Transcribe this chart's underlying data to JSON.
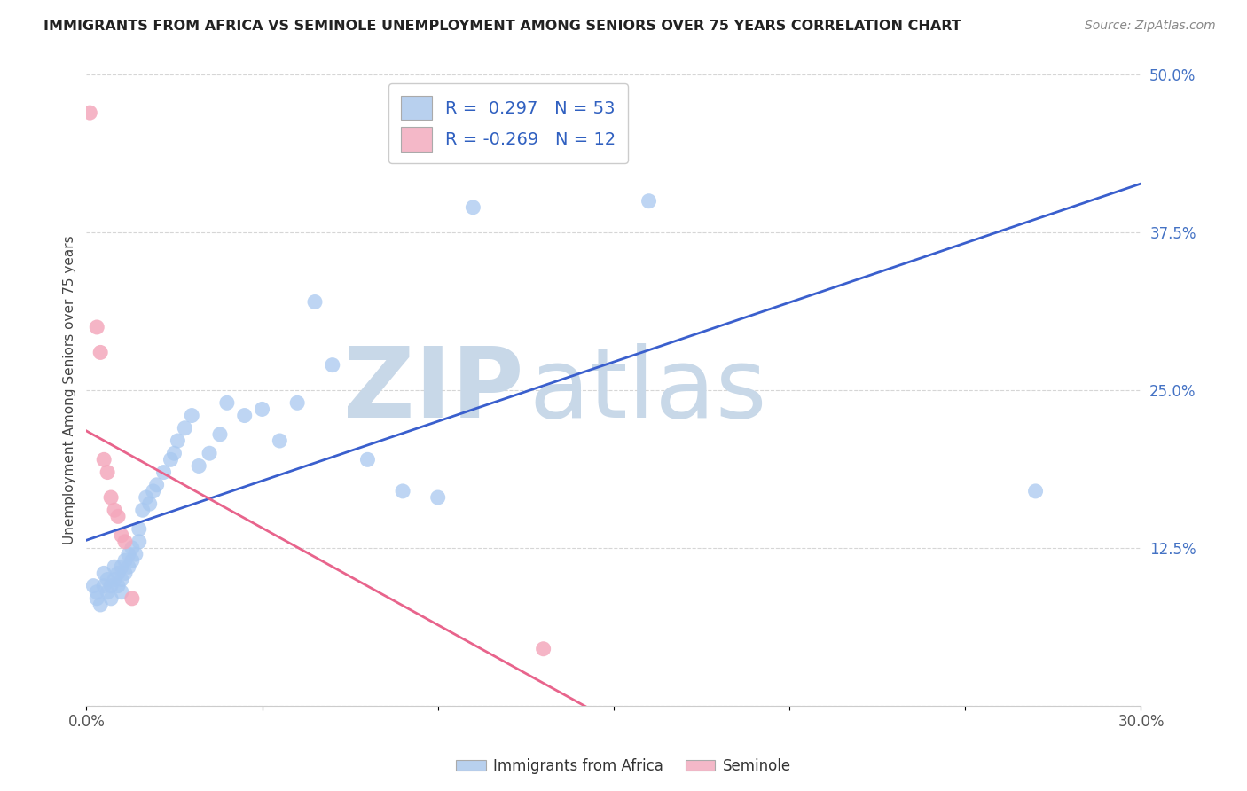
{
  "title": "IMMIGRANTS FROM AFRICA VS SEMINOLE UNEMPLOYMENT AMONG SENIORS OVER 75 YEARS CORRELATION CHART",
  "source": "Source: ZipAtlas.com",
  "ylabel": "Unemployment Among Seniors over 75 years",
  "xlim": [
    0.0,
    0.3
  ],
  "ylim": [
    0.0,
    0.5
  ],
  "yticks": [
    0.0,
    0.125,
    0.25,
    0.375,
    0.5
  ],
  "ytick_labels": [
    "",
    "12.5%",
    "25.0%",
    "37.5%",
    "50.0%"
  ],
  "xtick_left_label": "0.0%",
  "xtick_right_label": "30.0%",
  "blue_R": 0.297,
  "blue_N": 53,
  "pink_R": -0.269,
  "pink_N": 12,
  "blue_color": "#a8c8f0",
  "pink_color": "#f4a8bc",
  "blue_line_color": "#3a5fcd",
  "pink_line_color": "#e8648c",
  "watermark_zip": "ZIP",
  "watermark_atlas": "atlas",
  "watermark_color": "#c8d8e8",
  "legend_color_blue": "#b8d0ee",
  "legend_color_pink": "#f4b8c8",
  "blue_x": [
    0.002,
    0.003,
    0.003,
    0.004,
    0.005,
    0.005,
    0.006,
    0.006,
    0.007,
    0.007,
    0.008,
    0.008,
    0.009,
    0.009,
    0.01,
    0.01,
    0.01,
    0.011,
    0.011,
    0.012,
    0.012,
    0.013,
    0.013,
    0.014,
    0.015,
    0.015,
    0.016,
    0.017,
    0.018,
    0.019,
    0.02,
    0.022,
    0.024,
    0.025,
    0.026,
    0.028,
    0.03,
    0.032,
    0.035,
    0.038,
    0.04,
    0.045,
    0.05,
    0.055,
    0.06,
    0.065,
    0.07,
    0.08,
    0.09,
    0.1,
    0.11,
    0.16,
    0.27
  ],
  "blue_y": [
    0.095,
    0.085,
    0.09,
    0.08,
    0.095,
    0.105,
    0.09,
    0.1,
    0.085,
    0.095,
    0.1,
    0.11,
    0.095,
    0.105,
    0.1,
    0.09,
    0.11,
    0.105,
    0.115,
    0.11,
    0.12,
    0.115,
    0.125,
    0.12,
    0.13,
    0.14,
    0.155,
    0.165,
    0.16,
    0.17,
    0.175,
    0.185,
    0.195,
    0.2,
    0.21,
    0.22,
    0.23,
    0.19,
    0.2,
    0.215,
    0.24,
    0.23,
    0.235,
    0.21,
    0.24,
    0.32,
    0.27,
    0.195,
    0.17,
    0.165,
    0.395,
    0.4,
    0.17
  ],
  "pink_x": [
    0.001,
    0.003,
    0.004,
    0.005,
    0.006,
    0.007,
    0.008,
    0.009,
    0.01,
    0.011,
    0.013,
    0.13
  ],
  "pink_y": [
    0.47,
    0.3,
    0.28,
    0.195,
    0.185,
    0.165,
    0.155,
    0.15,
    0.135,
    0.13,
    0.085,
    0.045
  ],
  "figsize": [
    14.06,
    8.92
  ],
  "dpi": 100
}
